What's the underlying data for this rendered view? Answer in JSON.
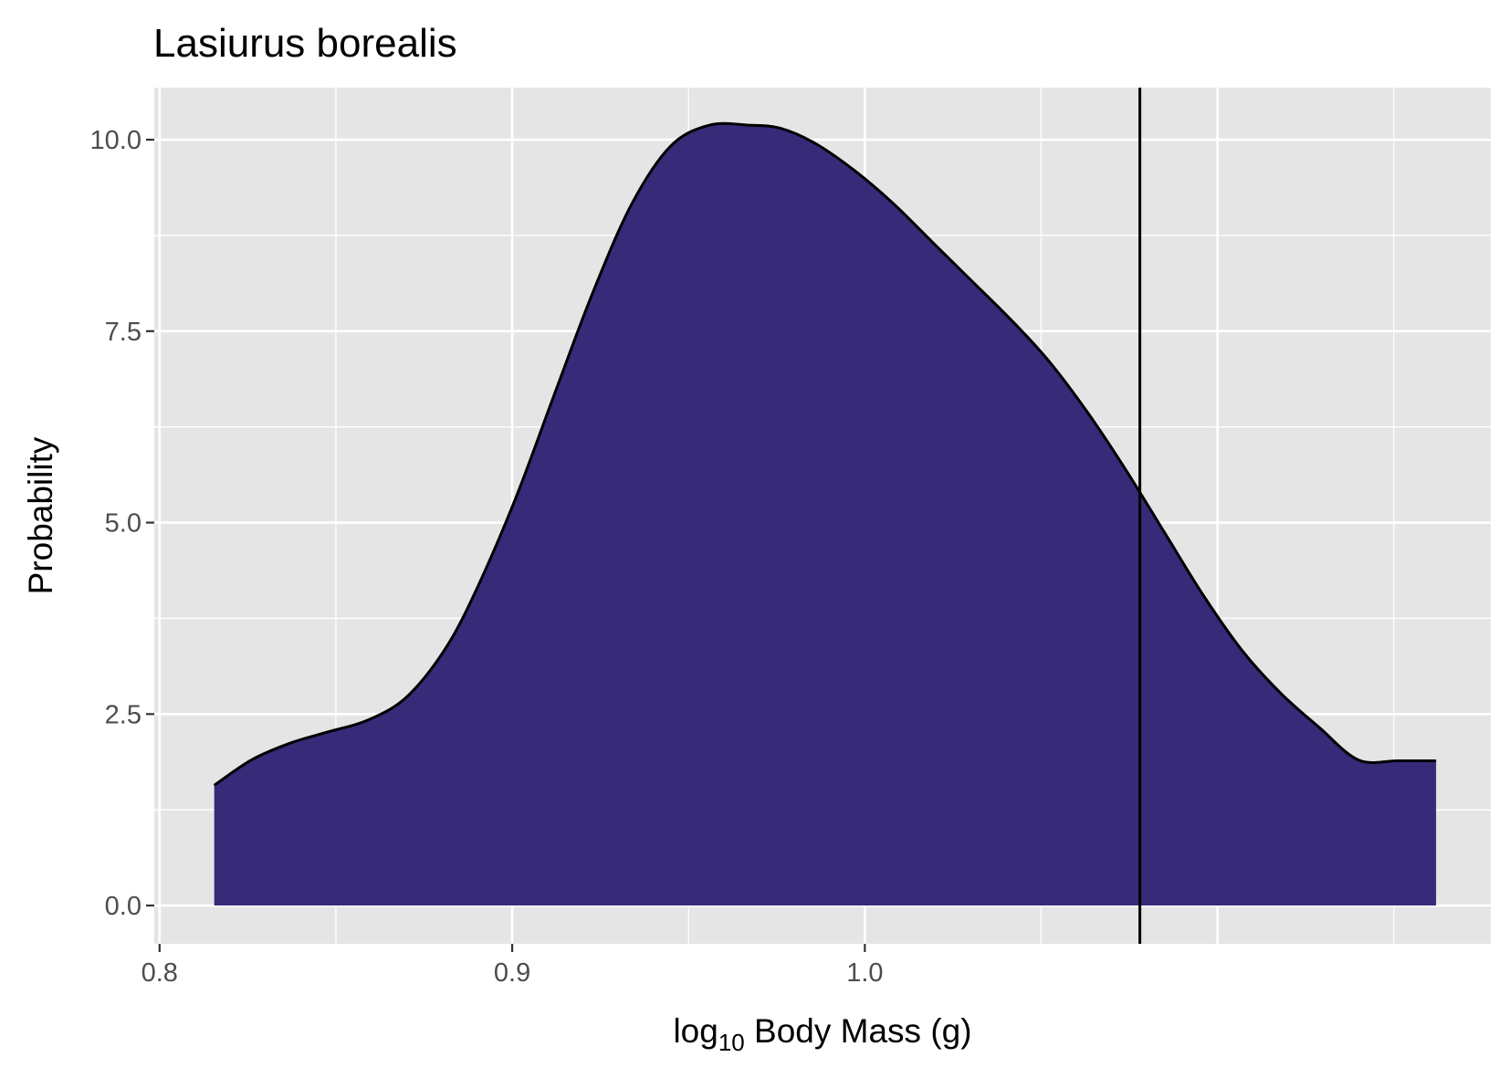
{
  "chart_data": {
    "type": "area",
    "title": "Lasiurus borealis",
    "xlabel_prefix": "log",
    "xlabel_subscript": "10",
    "xlabel_rest": " Body Mass (g)",
    "ylabel": "Probability",
    "xlim": [
      0.7985,
      1.1775
    ],
    "ylim": [
      -0.5,
      10.68
    ],
    "x_ticks": [
      {
        "value": 0.8,
        "label": "0.8"
      },
      {
        "value": 0.9,
        "label": "0.9"
      },
      {
        "value": 1.0,
        "label": "1.0"
      }
    ],
    "x_minor_gridlines": [
      0.85,
      0.95,
      1.05,
      1.15
    ],
    "x_unlabeled_major_gridlines": [
      1.1
    ],
    "y_ticks": [
      {
        "value": 0.0,
        "label": "0.0"
      },
      {
        "value": 2.5,
        "label": "2.5"
      },
      {
        "value": 5.0,
        "label": "5.0"
      },
      {
        "value": 7.5,
        "label": "7.5"
      },
      {
        "value": 10.0,
        "label": "10.0"
      }
    ],
    "grid": true,
    "fill_color": "#372a79",
    "line_color": "#000000",
    "panel_color": "#e5e5e5",
    "vline_x": 1.078,
    "density": {
      "x": [
        0.8155,
        0.826,
        0.837,
        0.848,
        0.859,
        0.87,
        0.881,
        0.89,
        0.901,
        0.912,
        0.923,
        0.934,
        0.945,
        0.956,
        0.967,
        0.976,
        0.986,
        0.997,
        1.008,
        1.019,
        1.03,
        1.041,
        1.052,
        1.063,
        1.074,
        1.085,
        1.096,
        1.107,
        1.118,
        1.129,
        1.14,
        1.151,
        1.162
      ],
      "y": [
        1.57,
        1.9,
        2.12,
        2.27,
        2.42,
        2.72,
        3.35,
        4.14,
        5.32,
        6.68,
        8.02,
        9.17,
        9.92,
        10.19,
        10.19,
        10.15,
        9.95,
        9.6,
        9.17,
        8.67,
        8.17,
        7.67,
        7.12,
        6.45,
        5.69,
        4.87,
        4.05,
        3.33,
        2.77,
        2.32,
        1.9,
        1.89,
        1.89
      ]
    }
  }
}
